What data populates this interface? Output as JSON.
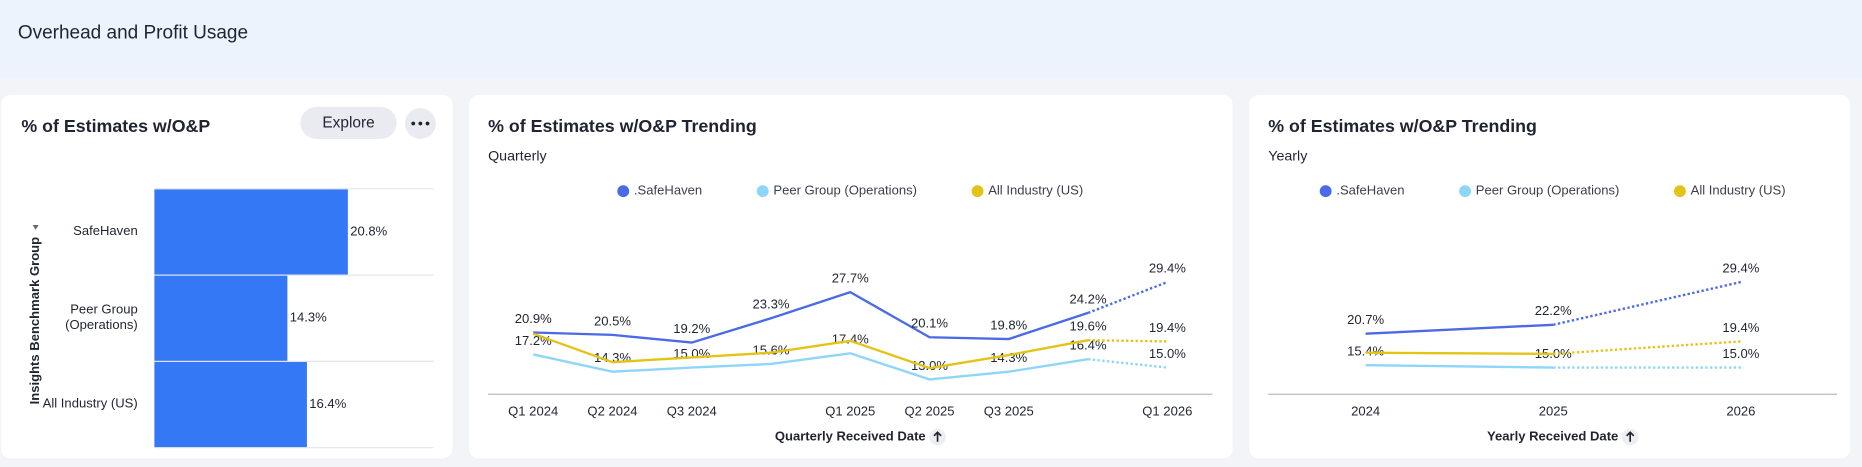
{
  "page_title": "Overhead and Profit Usage",
  "explore_button": "Explore",
  "chart_data": [
    {
      "type": "hbar",
      "title": "% of Estimates w/O&P",
      "y_label": "Insights Benchmark Group",
      "categories": [
        "SafeHaven",
        "Peer Group (Operations)",
        "All Industry (US)"
      ],
      "values": [
        20.8,
        14.3,
        16.4
      ],
      "value_labels": [
        "20.8%",
        "14.3%",
        "16.4%"
      ],
      "color": "#3478f6",
      "xlim": [
        0,
        30
      ]
    },
    {
      "type": "line",
      "title": "% of Estimates w/O&P Trending",
      "subtitle": "Quarterly",
      "x_label": "Quarterly Received Date",
      "categories": [
        "Q1 2024",
        "Q2 2024",
        "Q3 2024",
        null,
        "Q1 2025",
        "Q2 2025",
        "Q3 2025",
        null,
        "Q1 2026"
      ],
      "ylim": [
        10.5,
        30.5
      ],
      "dotted_last": true,
      "series": [
        {
          "name": ".SafeHaven",
          "color": "#4a6ae6",
          "values": [
            20.9,
            20.5,
            19.2,
            23.3,
            27.7,
            20.1,
            19.8,
            24.2,
            29.4
          ],
          "value_labels": [
            "20.9%",
            "20.5%",
            "19.2%",
            "23.3%",
            "27.7%",
            "20.1%",
            "19.8%",
            "24.2%",
            "29.4%"
          ]
        },
        {
          "name": "Peer Group (Operations)",
          "color": "#8ed6f8",
          "values": [
            17.2,
            14.3,
            15.0,
            15.6,
            17.4,
            13.0,
            14.3,
            16.4,
            15.0
          ],
          "value_labels": [
            "17.2%",
            "14.3%",
            "15.0%",
            "15.6%",
            "17.4%",
            "13.0%",
            "14.3%",
            "16.4%",
            "15.0%"
          ]
        },
        {
          "name": "All Industry (US)",
          "color": "#e3c416",
          "values": [
            20.7,
            15.9,
            16.7,
            17.5,
            19.5,
            14.9,
            17.1,
            19.6,
            19.4
          ],
          "value_labels": [
            null,
            null,
            null,
            null,
            null,
            null,
            null,
            "19.6%",
            "19.4%"
          ]
        }
      ]
    },
    {
      "type": "line",
      "title": "% of Estimates w/O&P Trending",
      "subtitle": "Yearly",
      "x_label": "Yearly Received Date",
      "categories": [
        "2024",
        "2025",
        "2026"
      ],
      "ylim": [
        10.5,
        30.5
      ],
      "dotted_last": true,
      "series": [
        {
          "name": ".SafeHaven",
          "color": "#4a6ae6",
          "values": [
            20.7,
            22.2,
            29.4
          ],
          "value_labels": [
            "20.7%",
            "22.2%",
            "29.4%"
          ]
        },
        {
          "name": "Peer Group (Operations)",
          "color": "#8ed6f8",
          "values": [
            15.4,
            15.0,
            15.0
          ],
          "value_labels": [
            "15.4%",
            "15.0%",
            "15.0%"
          ]
        },
        {
          "name": "All Industry (US)",
          "color": "#e3c416",
          "values": [
            17.5,
            17.3,
            19.4
          ],
          "value_labels": [
            null,
            null,
            "19.4%"
          ]
        }
      ]
    }
  ]
}
